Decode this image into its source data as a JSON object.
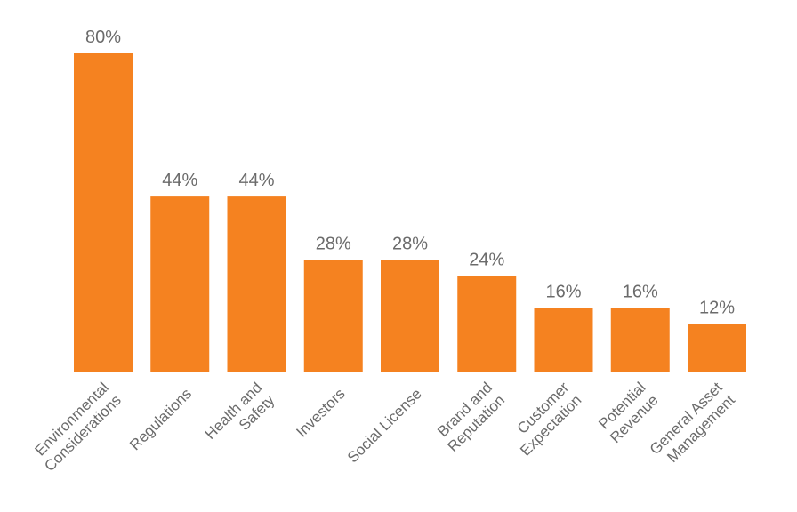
{
  "chart_data": {
    "type": "bar",
    "categories": [
      [
        "Environmental",
        "Considerations"
      ],
      [
        "Regulations"
      ],
      [
        "Health and",
        "Safety"
      ],
      [
        "Investors"
      ],
      [
        "Social License"
      ],
      [
        "Brand and",
        "Reputation"
      ],
      [
        "Customer",
        "Expectation"
      ],
      [
        "Potential",
        "Revenue"
      ],
      [
        "General Asset",
        "Management"
      ]
    ],
    "values": [
      80,
      44,
      44,
      28,
      28,
      24,
      16,
      16,
      12
    ],
    "data_labels": [
      "80%",
      "44%",
      "44%",
      "28%",
      "28%",
      "24%",
      "16%",
      "16%",
      "12%"
    ],
    "unit": "%",
    "ylim": [
      0,
      80
    ],
    "grid": false,
    "legend": "none",
    "colors": {
      "bar": "#F58220",
      "axis": "#b3b3b3",
      "text": "#6b6b6b"
    }
  }
}
